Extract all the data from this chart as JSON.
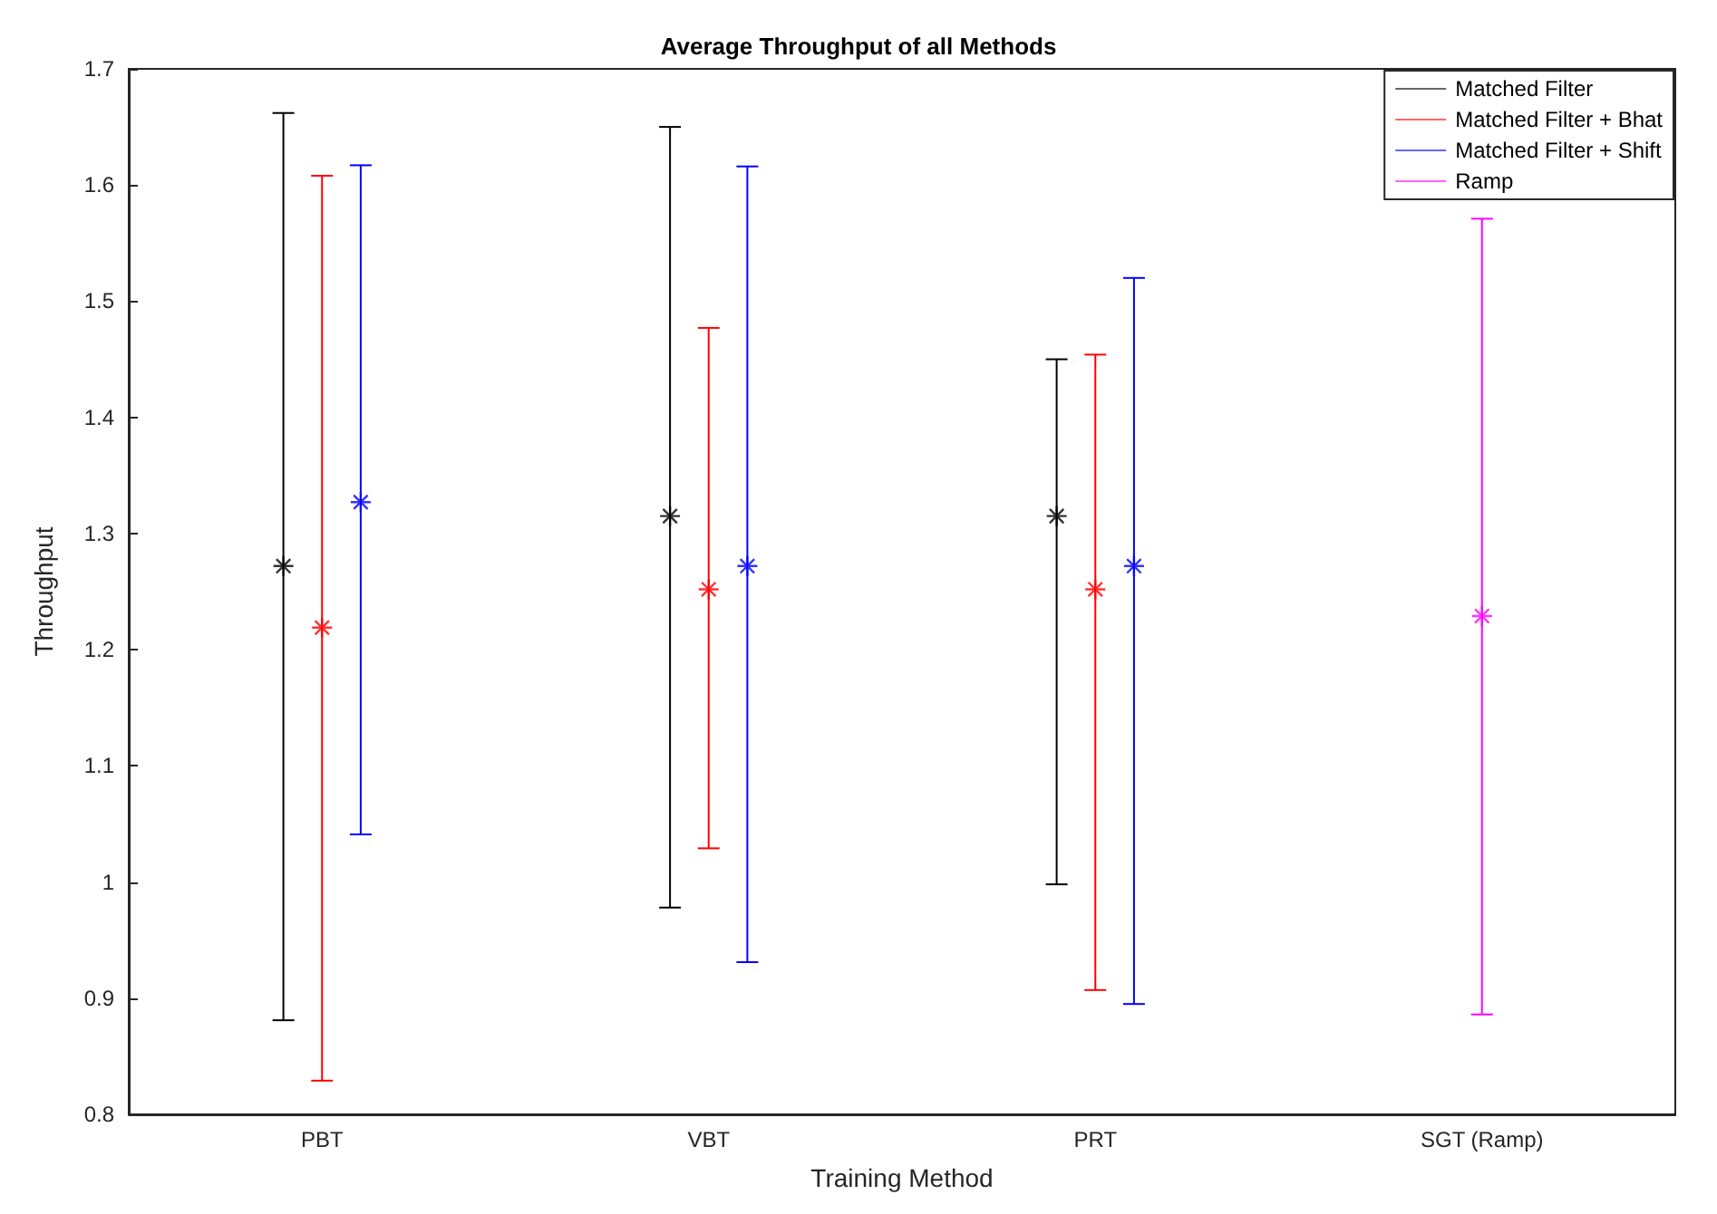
{
  "chart_data": {
    "type": "scatter",
    "title": "Average Throughput of all Methods",
    "xlabel": "Training Method",
    "ylabel": "Throughput",
    "categories": [
      "PBT",
      "VBT",
      "PRT",
      "SGT (Ramp)"
    ],
    "series": [
      {
        "name": "Matched Filter",
        "color": "#000000",
        "values": [
          1.272,
          1.315,
          1.315,
          null
        ],
        "errors": [
          [
            0.881,
            1.662
          ],
          [
            0.978,
            1.65
          ],
          [
            0.998,
            1.45
          ],
          null
        ]
      },
      {
        "name": "Matched Filter + Bhat",
        "color": "#ff0000",
        "values": [
          1.219,
          1.252,
          1.252,
          null
        ],
        "errors": [
          [
            0.829,
            1.608
          ],
          [
            1.029,
            1.477
          ],
          [
            0.907,
            1.454
          ],
          null
        ]
      },
      {
        "name": "Matched Filter + Shift",
        "color": "#0000ff",
        "values": [
          1.327,
          1.272,
          1.272,
          null
        ],
        "errors": [
          [
            1.041,
            1.617
          ],
          [
            0.931,
            1.616
          ],
          [
            0.895,
            1.52
          ],
          null
        ]
      },
      {
        "name": "Ramp",
        "color": "#ff00ff",
        "values": [
          null,
          null,
          null,
          1.229
        ],
        "errors": [
          null,
          null,
          null,
          [
            0.886,
            1.571
          ]
        ]
      }
    ],
    "ylim": [
      0.8,
      1.7
    ],
    "yticks": [
      0.8,
      0.9,
      1,
      1.1,
      1.2,
      1.3,
      1.4,
      1.5,
      1.6,
      1.7
    ],
    "legend": "top right",
    "marker": "cross"
  }
}
